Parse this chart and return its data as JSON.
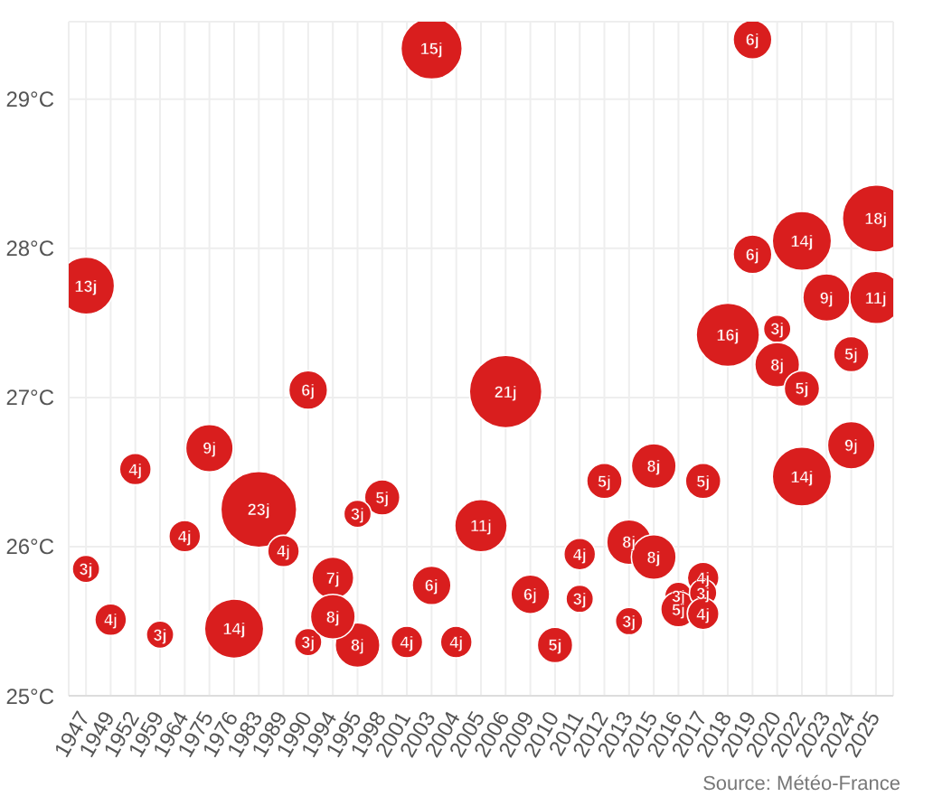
{
  "chart_data": {
    "type": "bubble",
    "categories": [
      "1947",
      "1949",
      "1952",
      "1959",
      "1964",
      "1975",
      "1976",
      "1983",
      "1989",
      "1990",
      "1994",
      "1995",
      "1998",
      "2001",
      "2003",
      "2004",
      "2005",
      "2006",
      "2009",
      "2010",
      "2011",
      "2012",
      "2013",
      "2015",
      "2016",
      "2017",
      "2018",
      "2019",
      "2020",
      "2022",
      "2023",
      "2024",
      "2025"
    ],
    "series": [
      {
        "color": "#d91e1e",
        "values": [
          27.75,
          25.51,
          26.52,
          25.41,
          26.07,
          26.66,
          25.45,
          26.25,
          25.97,
          27.05,
          25.79,
          25.34,
          26.33,
          25.36,
          25.74,
          25.36,
          26.14,
          27.04,
          25.68,
          25.34,
          25.95,
          26.44,
          26.03,
          26.54,
          25.67,
          26.44,
          27.42,
          29.4,
          27.46,
          28.05,
          27.67,
          27.29,
          28.2
        ],
        "sizes": [
          13,
          4,
          4,
          3,
          4,
          9,
          14,
          23,
          4,
          6,
          7,
          8,
          5,
          4,
          6,
          4,
          11,
          21,
          6,
          5,
          4,
          5,
          8,
          8,
          3,
          5,
          16,
          6,
          3,
          14,
          9,
          5,
          18
        ],
        "value_labels": [
          "13j",
          "4j",
          "4j",
          "3j",
          "4j",
          "9j",
          "14j",
          "23j",
          "4j",
          "6j",
          "7j",
          "8j",
          "5j",
          "4j",
          "6j",
          "4j",
          "11j",
          "21j",
          "6j",
          "5j",
          "4j",
          "5j",
          "8j",
          "8j",
          "3j",
          "5j",
          "16j",
          "6j",
          "3j",
          "14j",
          "9j",
          "5j",
          "18j"
        ]
      },
      {
        "color": "#d91e1e",
        "values": [
          25.85,
          null,
          null,
          null,
          null,
          null,
          null,
          null,
          null,
          25.36,
          25.53,
          26.22,
          null,
          null,
          29.34,
          null,
          null,
          null,
          null,
          null,
          25.65,
          null,
          25.5,
          25.93,
          25.58,
          25.79,
          null,
          27.96,
          27.22,
          27.06,
          null,
          26.68,
          27.67
        ],
        "sizes": [
          3,
          null,
          null,
          null,
          null,
          null,
          null,
          null,
          null,
          3,
          8,
          3,
          null,
          null,
          15,
          null,
          null,
          null,
          null,
          null,
          3,
          null,
          3,
          8,
          5,
          4,
          null,
          6,
          8,
          5,
          null,
          9,
          11
        ],
        "value_labels": [
          "3j",
          null,
          null,
          null,
          null,
          null,
          null,
          null,
          null,
          "3j",
          "8j",
          "3j",
          null,
          null,
          "15j",
          null,
          null,
          null,
          null,
          null,
          "3j",
          null,
          "3j",
          "8j",
          "5j",
          "4j",
          null,
          "6j",
          "8j",
          "5j",
          null,
          "9j",
          "11j"
        ]
      },
      {
        "color": "#d91e1e",
        "values": [
          null,
          null,
          null,
          null,
          null,
          null,
          null,
          null,
          null,
          null,
          null,
          null,
          null,
          null,
          null,
          null,
          null,
          null,
          null,
          null,
          null,
          null,
          null,
          null,
          null,
          25.69,
          null,
          null,
          null,
          26.47,
          null,
          null,
          null
        ],
        "sizes": [
          null,
          null,
          null,
          null,
          null,
          null,
          null,
          null,
          null,
          null,
          null,
          null,
          null,
          null,
          null,
          null,
          null,
          null,
          null,
          null,
          null,
          null,
          null,
          null,
          null,
          3,
          null,
          null,
          null,
          14,
          null,
          null,
          null
        ],
        "value_labels": [
          null,
          null,
          null,
          null,
          null,
          null,
          null,
          null,
          null,
          null,
          null,
          null,
          null,
          null,
          null,
          null,
          null,
          null,
          null,
          null,
          null,
          null,
          null,
          null,
          null,
          "3j",
          null,
          null,
          null,
          "14j",
          null,
          null,
          null
        ]
      },
      {
        "color": "#d91e1e",
        "values": [
          null,
          null,
          null,
          null,
          null,
          null,
          null,
          null,
          null,
          null,
          null,
          null,
          null,
          null,
          null,
          null,
          null,
          null,
          null,
          null,
          null,
          null,
          null,
          null,
          null,
          25.55,
          null,
          null,
          null,
          null,
          null,
          null,
          null
        ],
        "sizes": [
          null,
          null,
          null,
          null,
          null,
          null,
          null,
          null,
          null,
          null,
          null,
          null,
          null,
          null,
          null,
          null,
          null,
          null,
          null,
          null,
          null,
          null,
          null,
          null,
          null,
          4,
          null,
          null,
          null,
          null,
          null,
          null,
          null
        ],
        "value_labels": [
          null,
          null,
          null,
          null,
          null,
          null,
          null,
          null,
          null,
          null,
          null,
          null,
          null,
          null,
          null,
          null,
          null,
          null,
          null,
          null,
          null,
          null,
          null,
          null,
          null,
          "4j",
          null,
          null,
          null,
          null,
          null,
          null,
          null
        ]
      }
    ],
    "ylim": [
      25,
      29.52
    ],
    "yticks": [
      {
        "value": 25,
        "label": "25°C"
      },
      {
        "value": 26,
        "label": "26°C"
      },
      {
        "value": 27,
        "label": "27°C"
      },
      {
        "value": 28,
        "label": "28°C"
      },
      {
        "value": 29,
        "label": "29°C"
      }
    ],
    "grid": true,
    "annotations": [
      "Source: Météo-France"
    ]
  }
}
